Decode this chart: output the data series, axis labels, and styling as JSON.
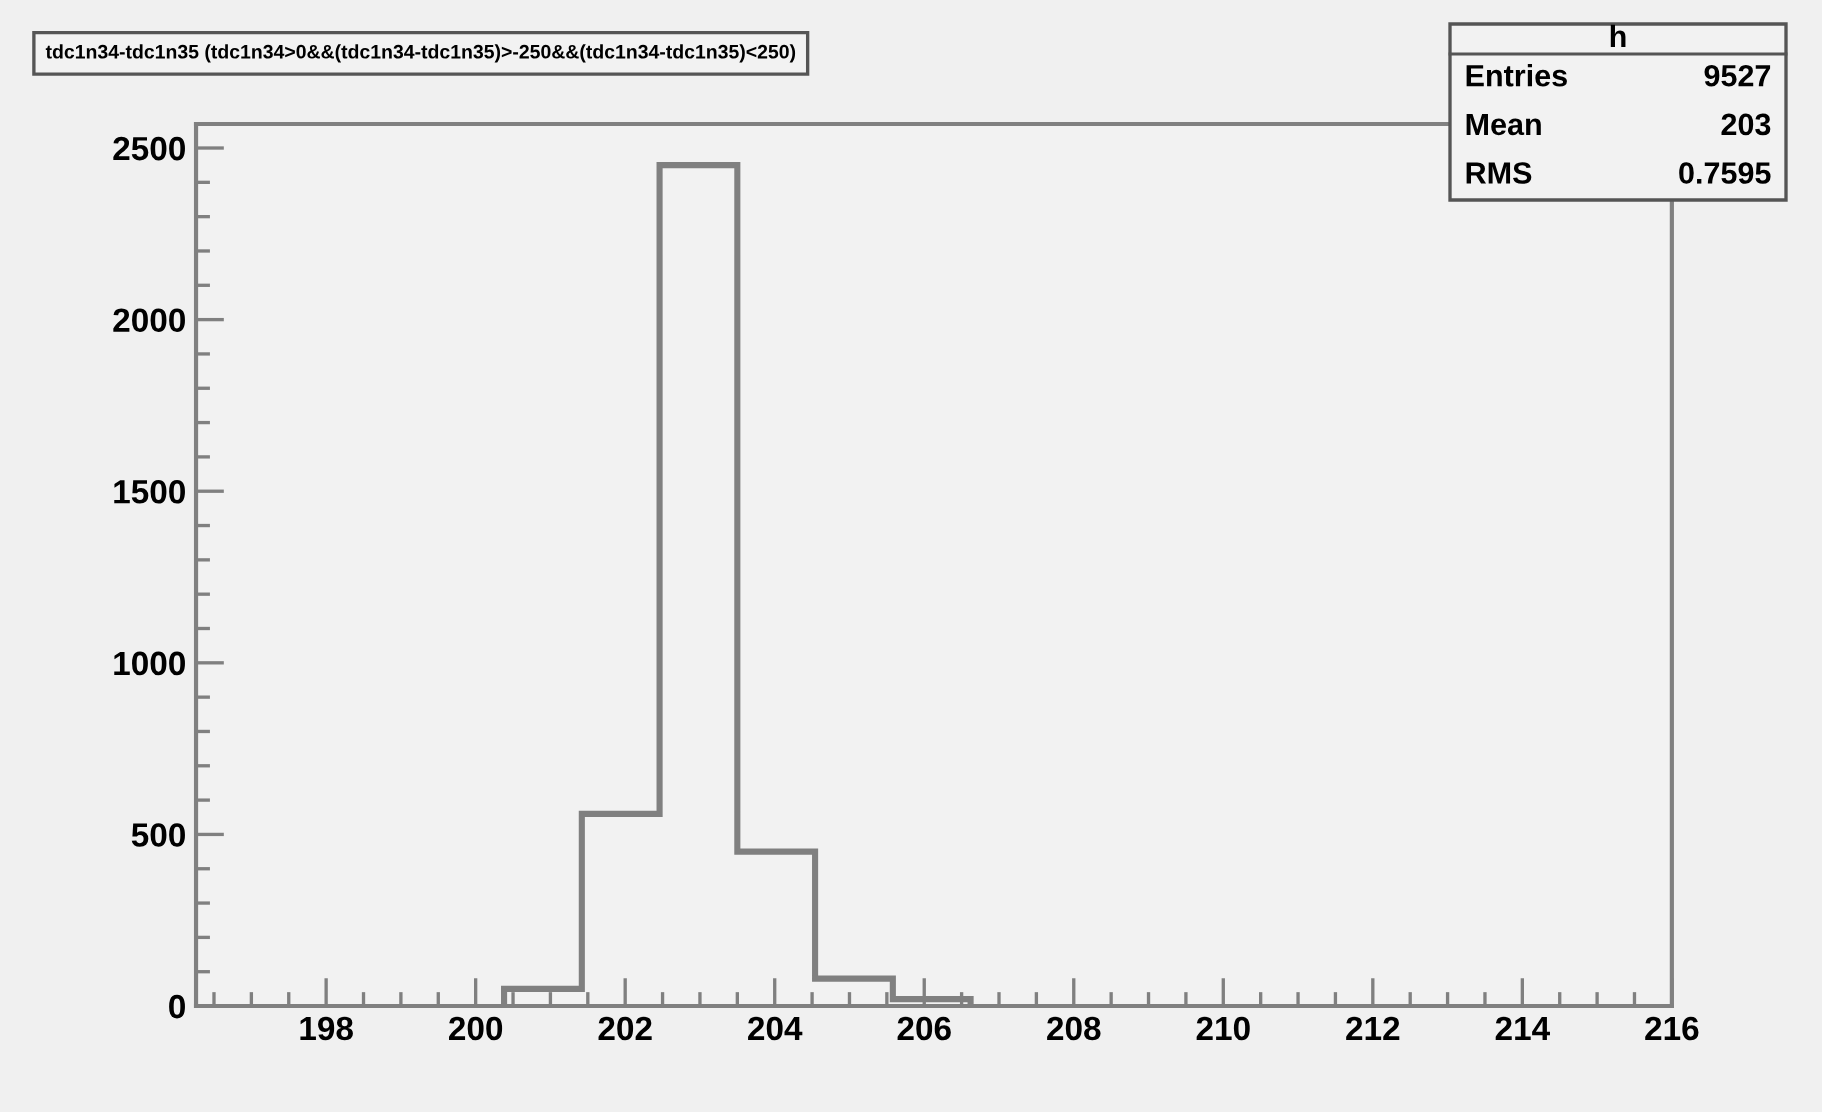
{
  "chart_data": {
    "type": "histogram",
    "title": "tdc1n34-tdc1n35 (tdc1n34>0&&(tdc1n34-tdc1n35)>-250&&(tdc1n34-tdc1n35)<250)",
    "bins": [
      200.38,
      201.42,
      202.46,
      203.5,
      204.54,
      205.58,
      206.62
    ],
    "values": [
      50,
      560,
      2450,
      450,
      80,
      20
    ],
    "color": "#808080",
    "xlim": [
      196.26,
      216
    ],
    "ylim": [
      0,
      2570
    ],
    "xticks": [
      198,
      200,
      202,
      204,
      206,
      208,
      210,
      212,
      214,
      216
    ],
    "yticks": [
      0,
      500,
      1000,
      1500,
      2000,
      2500
    ],
    "grid": false,
    "annotations": [
      "h",
      "Entries",
      "9527",
      "Mean",
      "203",
      "RMS",
      "0.7595"
    ]
  }
}
